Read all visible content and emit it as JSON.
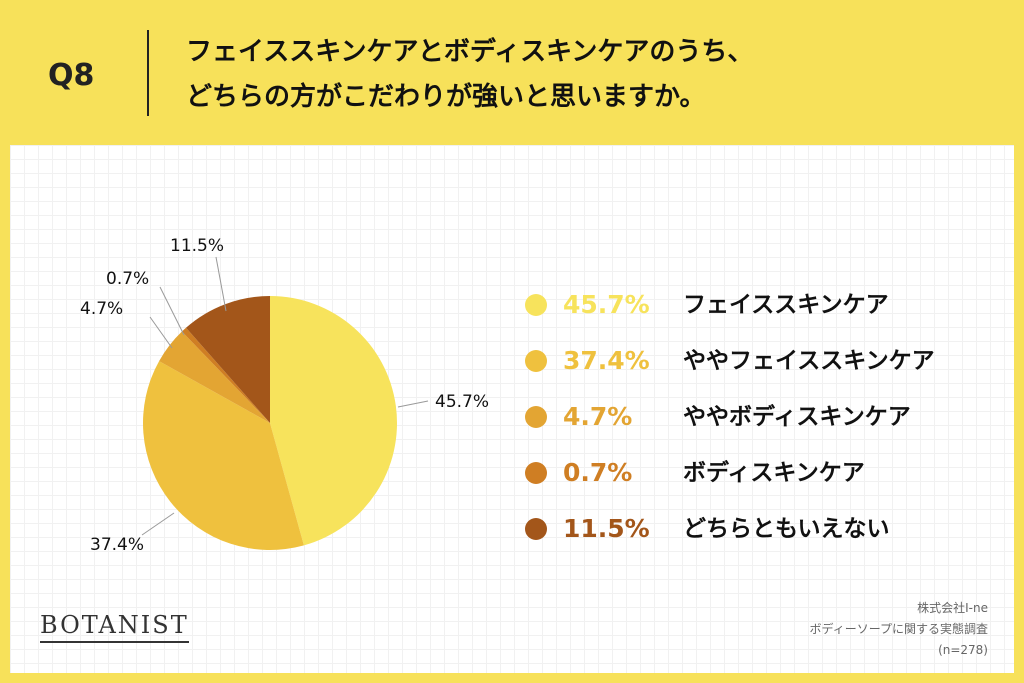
{
  "header": {
    "q_label": "Q8",
    "question_line1": "フェイススキンケアとボディスキンケアのうち、",
    "question_line2": "どちらの方がこだわりが強いと思いますか。"
  },
  "chart_data": {
    "type": "pie",
    "slices": [
      {
        "label": "フェイススキンケア",
        "value": 45.7,
        "pct_text": "45.7%",
        "color": "#f7e35c"
      },
      {
        "label": "ややフェイススキンケア",
        "value": 37.4,
        "pct_text": "37.4%",
        "color": "#efc13e"
      },
      {
        "label": "ややボディスキンケア",
        "value": 4.7,
        "pct_text": "4.7%",
        "color": "#e3a533"
      },
      {
        "label": "ボディスキンケア",
        "value": 0.7,
        "pct_text": "0.7%",
        "color": "#cf7e23"
      },
      {
        "label": "どちらともいえない",
        "value": 11.5,
        "pct_text": "11.5%",
        "color": "#a3561a"
      }
    ],
    "legend_placement": "right"
  },
  "logo": "BOTANIST",
  "source": {
    "line1": "株式会社I-ne",
    "line2": "ボディーソープに関する実態調査",
    "line3": "(n=278)"
  }
}
